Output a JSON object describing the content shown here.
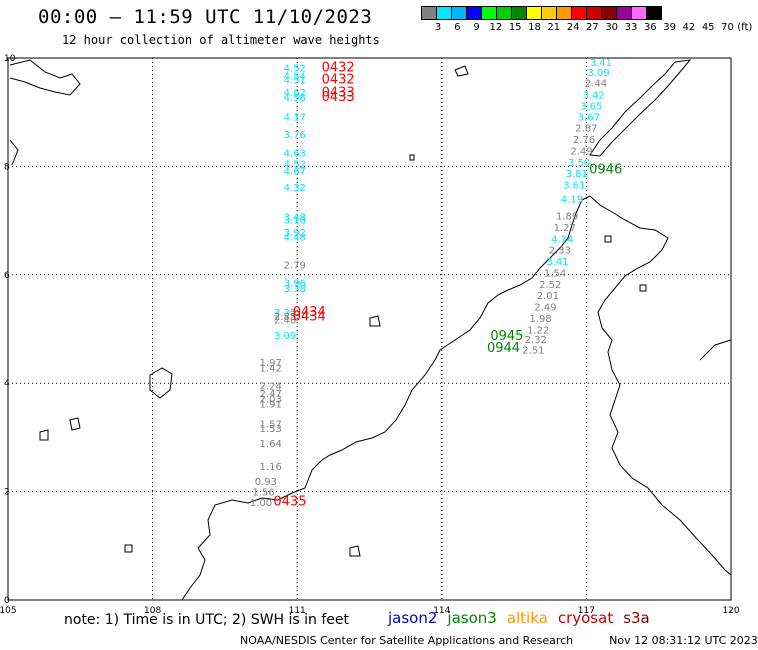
{
  "header": {
    "title": "00:00 – 11:59 UTC 11/10/2023",
    "subtitle": "12 hour collection of altimeter wave heights"
  },
  "legend": {
    "unit": "(ft)",
    "labels": [
      "3",
      "6",
      "9",
      "12",
      "15",
      "18",
      "21",
      "24",
      "27",
      "30",
      "33",
      "36",
      "39",
      "42",
      "45",
      "70"
    ],
    "colors": [
      "#808080",
      "#00e5ff",
      "#00b4ff",
      "#0000ff",
      "#00ff00",
      "#00cc00",
      "#008800",
      "#ffff00",
      "#ffcc00",
      "#ff9900",
      "#ff0000",
      "#cc0000",
      "#880000",
      "#990099",
      "#ff66ff",
      "#000000"
    ]
  },
  "map": {
    "lon_ticks": [
      "105",
      "108",
      "111",
      "114",
      "117",
      "120"
    ],
    "lat_ticks": [
      "0",
      "2",
      "4",
      "6",
      "8",
      "10"
    ]
  },
  "chart_data": {
    "type": "scatter",
    "x_range": [
      105,
      120
    ],
    "y_range": [
      0,
      10
    ],
    "pass_labels": [
      {
        "text": "0432",
        "lon": 111.85,
        "lat": 9.75,
        "sat": "cryosat"
      },
      {
        "text": "0432",
        "lon": 111.85,
        "lat": 9.53,
        "sat": "cryosat"
      },
      {
        "text": "0433",
        "lon": 111.85,
        "lat": 9.29,
        "sat": "cryosat"
      },
      {
        "text": "0433",
        "lon": 111.85,
        "lat": 9.21,
        "sat": "cryosat"
      },
      {
        "text": "0434",
        "lon": 111.25,
        "lat": 5.24,
        "sat": "cryosat"
      },
      {
        "text": "0434",
        "lon": 111.25,
        "lat": 5.16,
        "sat": "cryosat"
      },
      {
        "text": "0435",
        "lon": 110.85,
        "lat": 1.74,
        "sat": "cryosat"
      },
      {
        "text": "0945",
        "lon": 115.35,
        "lat": 4.8,
        "sat": "jason3"
      },
      {
        "text": "0944",
        "lon": 115.28,
        "lat": 4.58,
        "sat": "jason3"
      },
      {
        "text": "0946",
        "lon": 117.4,
        "lat": 7.87,
        "sat": "jason3"
      }
    ],
    "series": [
      {
        "name": "cryosat",
        "points": [
          {
            "lon": 110.95,
            "lat": 9.75,
            "swh": "4.52",
            "color": "#00e5ff"
          },
          {
            "lon": 110.95,
            "lat": 9.6,
            "swh": "4.54",
            "color": "#00e5ff"
          },
          {
            "lon": 110.95,
            "lat": 9.53,
            "swh": "4.51",
            "color": "#00e5ff"
          },
          {
            "lon": 110.95,
            "lat": 9.3,
            "swh": "4.62",
            "color": "#00e5ff"
          },
          {
            "lon": 110.95,
            "lat": 9.21,
            "swh": "4.56",
            "color": "#00e5ff"
          },
          {
            "lon": 110.95,
            "lat": 8.85,
            "swh": "4.17",
            "color": "#00e5ff"
          },
          {
            "lon": 110.95,
            "lat": 8.52,
            "swh": "3.76",
            "color": "#00e5ff"
          },
          {
            "lon": 110.95,
            "lat": 8.18,
            "swh": "4.63",
            "color": "#00e5ff"
          },
          {
            "lon": 110.95,
            "lat": 7.98,
            "swh": "4.52",
            "color": "#00e5ff"
          },
          {
            "lon": 110.95,
            "lat": 7.85,
            "swh": "4.67",
            "color": "#00e5ff"
          },
          {
            "lon": 110.95,
            "lat": 7.55,
            "swh": "4.32",
            "color": "#00e5ff"
          },
          {
            "lon": 110.95,
            "lat": 7.0,
            "swh": "3.48",
            "color": "#00e5ff"
          },
          {
            "lon": 110.95,
            "lat": 6.95,
            "swh": "3.16",
            "color": "#00e5ff"
          },
          {
            "lon": 110.95,
            "lat": 6.72,
            "swh": "3.92",
            "color": "#00e5ff"
          },
          {
            "lon": 110.95,
            "lat": 6.63,
            "swh": "4.48",
            "color": "#00e5ff"
          },
          {
            "lon": 110.95,
            "lat": 6.12,
            "swh": "2.79",
            "color": "#808080"
          },
          {
            "lon": 110.95,
            "lat": 5.78,
            "swh": "3.96",
            "color": "#00e5ff"
          },
          {
            "lon": 110.95,
            "lat": 5.68,
            "swh": "3.38",
            "color": "#00e5ff"
          },
          {
            "lon": 110.75,
            "lat": 5.24,
            "swh": "3.35",
            "color": "#00e5ff"
          },
          {
            "lon": 110.75,
            "lat": 5.17,
            "swh": "2.85",
            "color": "#808080"
          },
          {
            "lon": 110.75,
            "lat": 5.1,
            "swh": "2.46",
            "color": "#808080"
          },
          {
            "lon": 110.75,
            "lat": 4.82,
            "swh": "3.09",
            "color": "#00e5ff"
          },
          {
            "lon": 110.45,
            "lat": 4.32,
            "swh": "1.97",
            "color": "#808080"
          },
          {
            "lon": 110.45,
            "lat": 4.22,
            "swh": "1.42",
            "color": "#808080"
          },
          {
            "lon": 110.45,
            "lat": 3.88,
            "swh": "2.24",
            "color": "#808080"
          },
          {
            "lon": 110.45,
            "lat": 3.75,
            "swh": "2.47",
            "color": "#808080"
          },
          {
            "lon": 110.45,
            "lat": 3.64,
            "swh": "2.03",
            "color": "#808080"
          },
          {
            "lon": 110.45,
            "lat": 3.55,
            "swh": "1.91",
            "color": "#808080"
          },
          {
            "lon": 110.45,
            "lat": 3.18,
            "swh": "1.57",
            "color": "#808080"
          },
          {
            "lon": 110.45,
            "lat": 3.1,
            "swh": "1.53",
            "color": "#808080"
          },
          {
            "lon": 110.45,
            "lat": 2.82,
            "swh": "1.64",
            "color": "#808080"
          },
          {
            "lon": 110.45,
            "lat": 2.4,
            "swh": "1.16",
            "color": "#808080"
          },
          {
            "lon": 110.35,
            "lat": 2.12,
            "swh": "0.93",
            "color": "#808080"
          },
          {
            "lon": 110.3,
            "lat": 1.93,
            "swh": "1.56",
            "color": "#808080"
          },
          {
            "lon": 110.25,
            "lat": 1.73,
            "swh": "1.00",
            "color": "#808080"
          }
        ]
      },
      {
        "name": "jason3",
        "points": [
          {
            "lon": 117.3,
            "lat": 9.85,
            "swh": "3.41",
            "color": "#00e5ff"
          },
          {
            "lon": 117.25,
            "lat": 9.67,
            "swh": "3.09",
            "color": "#00e5ff"
          },
          {
            "lon": 117.2,
            "lat": 9.47,
            "swh": "2.44",
            "color": "#808080"
          },
          {
            "lon": 117.15,
            "lat": 9.25,
            "swh": "3.42",
            "color": "#00e5ff"
          },
          {
            "lon": 117.1,
            "lat": 9.05,
            "swh": "3.65",
            "color": "#00e5ff"
          },
          {
            "lon": 117.05,
            "lat": 8.85,
            "swh": "3.67",
            "color": "#00e5ff"
          },
          {
            "lon": 117.0,
            "lat": 8.64,
            "swh": "2.87",
            "color": "#808080"
          },
          {
            "lon": 116.95,
            "lat": 8.43,
            "swh": "2.76",
            "color": "#808080"
          },
          {
            "lon": 116.9,
            "lat": 8.22,
            "swh": "2.49",
            "color": "#808080"
          },
          {
            "lon": 116.85,
            "lat": 8.01,
            "swh": "3.50",
            "color": "#00e5ff"
          },
          {
            "lon": 116.8,
            "lat": 7.8,
            "swh": "3.81",
            "color": "#00e5ff"
          },
          {
            "lon": 116.75,
            "lat": 7.59,
            "swh": "3.61",
            "color": "#00e5ff"
          },
          {
            "lon": 116.7,
            "lat": 7.33,
            "swh": "4.19",
            "color": "#00e5ff"
          },
          {
            "lon": 116.6,
            "lat": 7.02,
            "swh": "1.89",
            "color": "#808080"
          },
          {
            "lon": 116.55,
            "lat": 6.81,
            "swh": "1.27",
            "color": "#808080"
          },
          {
            "lon": 116.5,
            "lat": 6.6,
            "swh": "4.14",
            "color": "#00e5ff"
          },
          {
            "lon": 116.45,
            "lat": 6.39,
            "swh": "2.33",
            "color": "#808080"
          },
          {
            "lon": 116.4,
            "lat": 6.18,
            "swh": "3.41",
            "color": "#00e5ff"
          },
          {
            "lon": 116.35,
            "lat": 5.97,
            "swh": "1.54",
            "color": "#808080"
          },
          {
            "lon": 116.25,
            "lat": 5.76,
            "swh": "2.52",
            "color": "#808080"
          },
          {
            "lon": 116.2,
            "lat": 5.55,
            "swh": "2.01",
            "color": "#808080"
          },
          {
            "lon": 116.15,
            "lat": 5.34,
            "swh": "2.49",
            "color": "#808080"
          },
          {
            "lon": 116.05,
            "lat": 5.13,
            "swh": "1.98",
            "color": "#808080"
          },
          {
            "lon": 116.0,
            "lat": 4.92,
            "swh": "1.22",
            "color": "#808080"
          },
          {
            "lon": 115.95,
            "lat": 4.74,
            "swh": "2.32",
            "color": "#808080"
          },
          {
            "lon": 115.9,
            "lat": 4.55,
            "swh": "2.51",
            "color": "#808080"
          }
        ]
      }
    ]
  },
  "footer": {
    "note": "note: 1) Time is in UTC; 2) SWH is in feet",
    "satellites": [
      {
        "name": "jason2",
        "color": "#0000cc"
      },
      {
        "name": "jason3",
        "color": "#008800"
      },
      {
        "name": "altika",
        "color": "#ff9900"
      },
      {
        "name": "cryosat",
        "color": "#cc0000"
      },
      {
        "name": "s3a",
        "color": "#880000"
      }
    ],
    "credit": "NOAA/NESDIS Center for Satellite Applications and Research",
    "timestamp": "Nov 12 08:31:12 UTC 2023"
  }
}
